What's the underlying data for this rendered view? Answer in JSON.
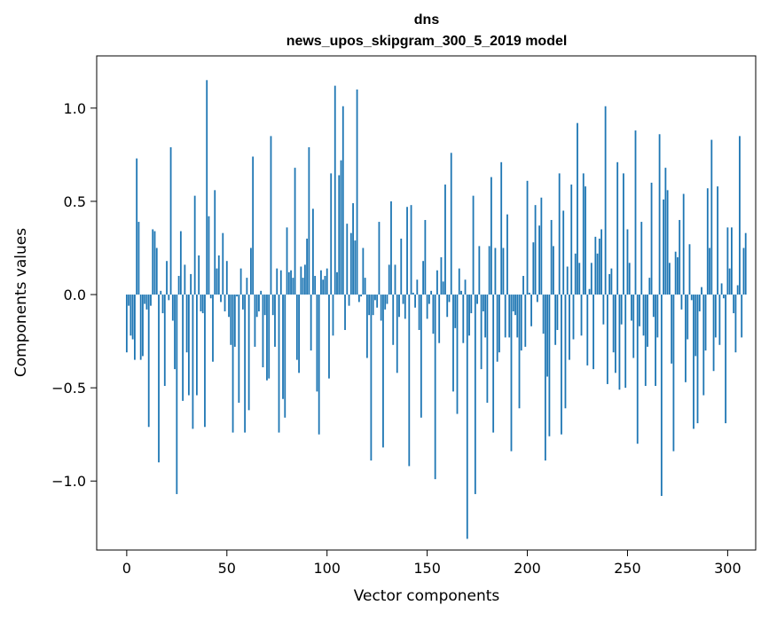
{
  "chart_data": {
    "type": "bar",
    "title": "dns",
    "subtitle": "news_upos_skipgram_300_5_2019 model",
    "xlabel": "Vector components",
    "ylabel": "Components values",
    "xlim": [
      -15,
      314
    ],
    "ylim": [
      -1.37,
      1.28
    ],
    "xticks": [
      0,
      50,
      100,
      150,
      200,
      250,
      300
    ],
    "yticks": [
      -1.0,
      -0.5,
      0.0,
      0.5,
      1.0
    ],
    "ytick_labels": [
      "−1.0",
      "−0.5",
      "0.0",
      "0.5",
      "1.0"
    ],
    "xtick_labels": [
      "0",
      "50",
      "100",
      "150",
      "200",
      "250",
      "300"
    ],
    "grid": false,
    "bar_color": "#1f77b4",
    "values": [
      -0.31,
      -0.06,
      -0.22,
      -0.24,
      -0.35,
      0.73,
      0.39,
      -0.35,
      -0.33,
      -0.05,
      -0.08,
      -0.71,
      -0.06,
      0.35,
      0.34,
      0.25,
      -0.9,
      0.02,
      -0.1,
      -0.49,
      0.18,
      -0.03,
      0.79,
      -0.14,
      -0.4,
      -1.07,
      0.1,
      0.34,
      -0.57,
      0.16,
      -0.31,
      -0.54,
      0.11,
      -0.72,
      0.53,
      -0.54,
      0.21,
      -0.09,
      -0.1,
      -0.71,
      1.15,
      0.42,
      -0.02,
      -0.36,
      0.56,
      0.14,
      0.21,
      -0.04,
      0.33,
      -0.09,
      0.18,
      -0.12,
      -0.27,
      -0.74,
      -0.28,
      -0.01,
      -0.58,
      0.14,
      -0.08,
      -0.74,
      0.09,
      -0.62,
      0.25,
      0.74,
      -0.28,
      -0.12,
      -0.09,
      0.02,
      -0.39,
      -0.11,
      -0.46,
      -0.45,
      0.85,
      -0.11,
      -0.28,
      0.14,
      -0.74,
      0.13,
      -0.56,
      -0.66,
      0.36,
      0.12,
      0.13,
      0.09,
      0.68,
      -0.35,
      -0.42,
      0.15,
      0.09,
      0.16,
      0.3,
      0.79,
      -0.3,
      0.46,
      0.1,
      -0.52,
      -0.75,
      0.13,
      0.08,
      0.1,
      0.14,
      -0.45,
      0.65,
      -0.22,
      1.12,
      0.12,
      0.64,
      0.72,
      1.01,
      -0.19,
      0.38,
      -0.06,
      0.33,
      0.49,
      0.29,
      1.1,
      -0.04,
      -0.01,
      0.25,
      0.09,
      -0.34,
      -0.11,
      -0.89,
      -0.11,
      -0.03,
      -0.07,
      0.39,
      -0.14,
      -0.82,
      -0.08,
      -0.05,
      0.16,
      0.5,
      -0.27,
      0.16,
      -0.42,
      -0.12,
      0.3,
      -0.05,
      -0.13,
      0.47,
      -0.92,
      0.48,
      0.01,
      -0.07,
      0.08,
      -0.19,
      -0.66,
      0.18,
      0.4,
      -0.13,
      -0.05,
      0.02,
      -0.21,
      -0.99,
      0.13,
      -0.26,
      0.2,
      0.07,
      0.59,
      -0.12,
      -0.04,
      0.76,
      -0.52,
      -0.18,
      -0.64,
      0.14,
      0.02,
      -0.26,
      0.08,
      -1.31,
      -0.22,
      -0.1,
      0.53,
      -1.07,
      -0.05,
      0.26,
      -0.4,
      -0.09,
      -0.23,
      -0.58,
      0.26,
      0.63,
      -0.74,
      0.25,
      -0.36,
      -0.31,
      0.71,
      0.25,
      -0.23,
      0.43,
      -0.23,
      -0.84,
      -0.09,
      -0.11,
      -0.23,
      -0.61,
      -0.3,
      0.1,
      -0.28,
      0.61,
      0.01,
      -0.17,
      0.28,
      0.48,
      -0.04,
      0.37,
      0.52,
      -0.21,
      -0.89,
      -0.44,
      -0.76,
      0.4,
      0.26,
      -0.27,
      -0.19,
      0.65,
      -0.75,
      0.45,
      -0.61,
      0.15,
      -0.35,
      0.59,
      -0.24,
      0.22,
      0.92,
      0.17,
      -0.22,
      0.65,
      0.58,
      -0.38,
      0.03,
      0.17,
      -0.4,
      0.31,
      0.22,
      0.3,
      0.35,
      -0.16,
      1.01,
      -0.48,
      0.11,
      0.14,
      -0.31,
      -0.42,
      0.71,
      -0.51,
      -0.16,
      0.65,
      -0.5,
      0.35,
      0.17,
      -0.14,
      -0.34,
      0.88,
      -0.8,
      -0.17,
      0.39,
      -0.22,
      -0.49,
      -0.28,
      0.09,
      0.6,
      -0.12,
      -0.49,
      -0.23,
      0.86,
      -1.08,
      0.51,
      0.68,
      0.56,
      0.17,
      -0.37,
      -0.84,
      0.23,
      0.2,
      0.4,
      -0.08,
      0.54,
      -0.47,
      -0.24,
      0.27,
      -0.03,
      -0.72,
      -0.33,
      -0.69,
      -0.09,
      0.04,
      -0.54,
      -0.3,
      0.57,
      0.25,
      0.83,
      -0.41,
      -0.23,
      0.58,
      -0.27,
      0.06,
      -0.02,
      -0.69,
      0.36,
      0.14,
      0.36,
      -0.1,
      -0.31,
      0.05,
      0.85,
      -0.23,
      0.25,
      0.33
    ]
  }
}
